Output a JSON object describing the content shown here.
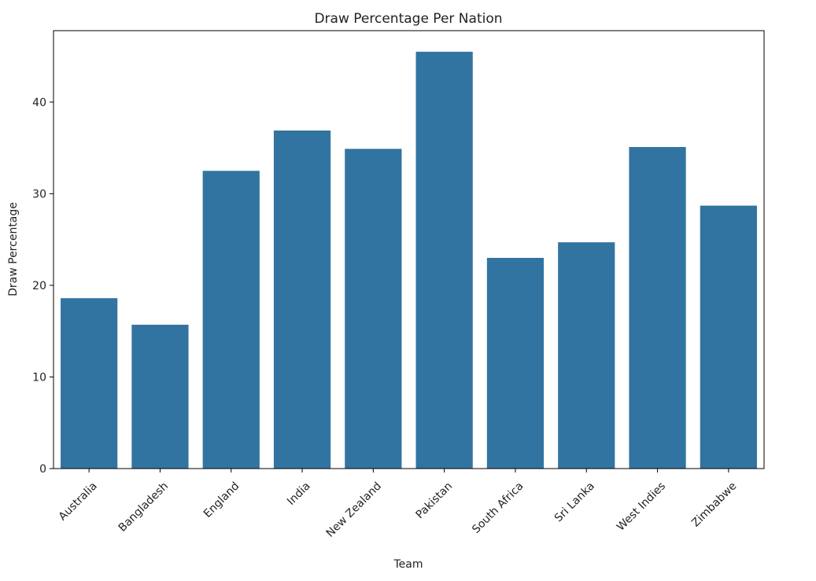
{
  "chart_data": {
    "type": "bar",
    "title": "Draw Percentage Per Nation",
    "xlabel": "Team",
    "ylabel": "Draw Percentage",
    "categories": [
      "Australia",
      "Bangladesh",
      "England",
      "India",
      "New Zealand",
      "Pakistan",
      "South Africa",
      "Sri Lanka",
      "West Indies",
      "Zimbabwe"
    ],
    "values": [
      18.6,
      15.7,
      32.5,
      36.9,
      34.9,
      45.5,
      23.0,
      24.7,
      35.1,
      28.7
    ],
    "ylim": [
      0,
      47.8
    ],
    "yticks": [
      0,
      10,
      20,
      30,
      40
    ],
    "grid": false,
    "bar_color": "#3274a1",
    "x_tick_rotation": -45
  }
}
